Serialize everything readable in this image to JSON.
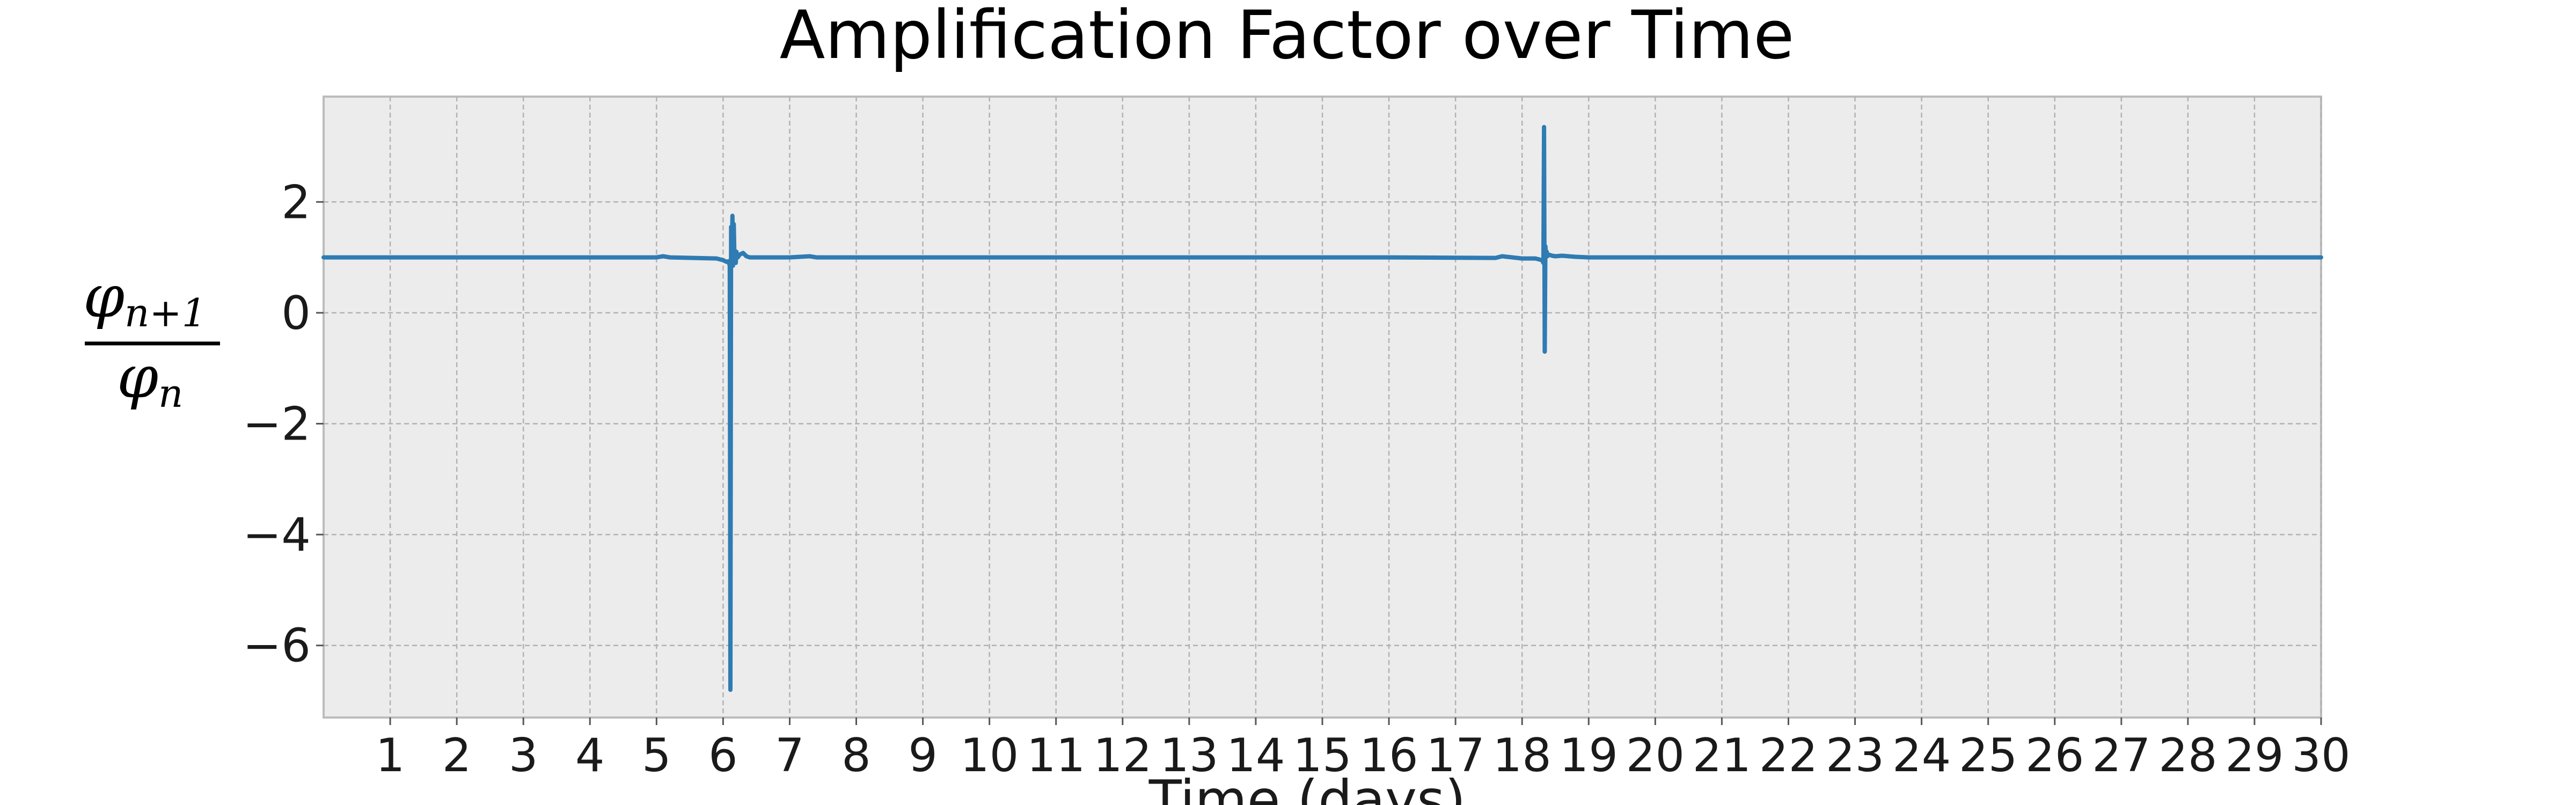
{
  "chart_data": {
    "type": "line",
    "title": "Amplification Factor over Time",
    "xlabel": "Time (days)",
    "ylabel": {
      "numerator": "φ",
      "numerator_sub": "n+1",
      "denominator": "φ",
      "denominator_sub": "n"
    },
    "xlim": [
      0,
      30
    ],
    "ylim": [
      -7.3,
      3.9
    ],
    "x_ticks": [
      1,
      2,
      3,
      4,
      5,
      6,
      7,
      8,
      9,
      10,
      11,
      12,
      13,
      14,
      15,
      16,
      17,
      18,
      19,
      20,
      21,
      22,
      23,
      24,
      25,
      26,
      27,
      28,
      29,
      30
    ],
    "y_ticks": [
      -6,
      -4,
      -2,
      0,
      2
    ],
    "y_tick_labels": [
      "−6",
      "−4",
      "−2",
      "0",
      "2"
    ],
    "grid": true,
    "series": [
      {
        "color": "#2f7bb3",
        "x": [
          0,
          5.0,
          5.1,
          5.2,
          5.9,
          6.0,
          6.05,
          6.08,
          6.1,
          6.11,
          6.12,
          6.13,
          6.14,
          6.15,
          6.16,
          6.17,
          6.18,
          6.19,
          6.2,
          6.22,
          6.25,
          6.3,
          6.35,
          6.4,
          6.5,
          7.0,
          7.3,
          7.4,
          7.5,
          16.0,
          17.6,
          17.7,
          18.0,
          18.2,
          18.3,
          18.32,
          18.33,
          18.34,
          18.35,
          18.36,
          18.37,
          18.38,
          18.4,
          18.45,
          18.5,
          18.6,
          18.8,
          19.0,
          30
        ],
        "y": [
          1.0,
          1.0,
          1.02,
          1.0,
          0.98,
          0.95,
          0.92,
          0.93,
          0.85,
          -6.8,
          1.55,
          0.9,
          1.75,
          0.85,
          1.6,
          1.0,
          1.12,
          0.9,
          1.1,
          1.0,
          1.05,
          1.08,
          1.02,
          1.0,
          1.0,
          1.0,
          1.02,
          1.0,
          1.0,
          1.0,
          0.99,
          1.02,
          0.98,
          0.98,
          0.95,
          0.9,
          3.35,
          -0.7,
          1.2,
          1.05,
          1.1,
          1.02,
          1.05,
          1.03,
          1.02,
          1.03,
          1.01,
          1.0,
          1.0
        ]
      }
    ]
  }
}
